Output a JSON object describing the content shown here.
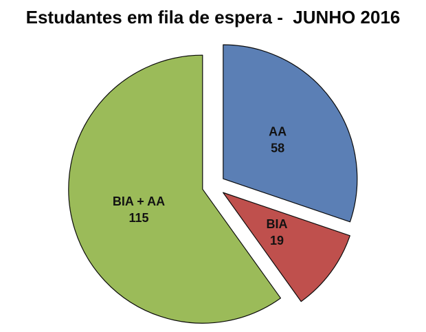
{
  "title": "Estudantes em fila de espera -  JUNHO 2016",
  "chart_data": {
    "type": "pie",
    "title": "Estudantes em fila de espera -  JUNHO 2016",
    "categories": [
      "AA",
      "BIA",
      "BIA + AA"
    ],
    "values": [
      58,
      19,
      115
    ],
    "total": 192,
    "colors": [
      "#5B7FB5",
      "#BF504D",
      "#9BBB59"
    ],
    "outline_color": "#0a0a0a",
    "background": "#FFFFFF",
    "start_angle_deg": 0,
    "direction": "clockwise",
    "exploded": true,
    "labels_inside": true,
    "legend": "none"
  }
}
